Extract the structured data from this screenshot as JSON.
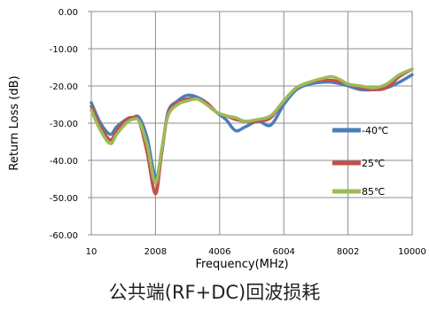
{
  "caption": "公共端(RF+DC)回波损耗",
  "chart_data": {
    "type": "line",
    "title": "",
    "xlabel": "Frequency(MHz)",
    "ylabel": "Return Loss (dB)",
    "xlim": [
      10,
      10000
    ],
    "ylim": [
      -60,
      0
    ],
    "x_ticks": [
      10,
      2008,
      4006,
      6004,
      8002,
      10000
    ],
    "x_tick_labels": [
      "10",
      "2008",
      "4006",
      "6004",
      "8002",
      "10000"
    ],
    "y_ticks": [
      0,
      -10,
      -20,
      -30,
      -40,
      -50,
      -60
    ],
    "y_tick_labels": [
      "0.00",
      "-10.00",
      "-20.00",
      "-30.00",
      "-40.00",
      "-50.00",
      "-60.00"
    ],
    "grid": true,
    "legend_position": "right",
    "series": [
      {
        "name": "-40℃",
        "color": "#4a7ebb",
        "x": [
          10,
          300,
          600,
          800,
          1100,
          1300,
          1500,
          1750,
          2008,
          2200,
          2400,
          2700,
          3000,
          3300,
          3600,
          3900,
          4200,
          4500,
          4800,
          5200,
          5600,
          6004,
          6400,
          6800,
          7200,
          7500,
          7800,
          8002,
          8400,
          8800,
          9200,
          9600,
          10000
        ],
        "y": [
          -24.5,
          -30,
          -33,
          -31,
          -29,
          -28.5,
          -28.5,
          -34,
          -44.5,
          -38,
          -27,
          -24,
          -22.5,
          -23,
          -24.5,
          -27,
          -29,
          -32,
          -31,
          -29.5,
          -30.5,
          -25,
          -21,
          -19.5,
          -19,
          -19,
          -19.5,
          -20,
          -21,
          -21,
          -20.5,
          -19,
          -17
        ]
      },
      {
        "name": "25℃",
        "color": "#c0504d",
        "x": [
          10,
          300,
          600,
          800,
          1100,
          1300,
          1500,
          1750,
          2008,
          2200,
          2400,
          2700,
          3000,
          3300,
          3600,
          3900,
          4200,
          4500,
          4800,
          5200,
          5600,
          6004,
          6400,
          6800,
          7200,
          7500,
          7800,
          8002,
          8400,
          8800,
          9200,
          9600,
          10000
        ],
        "y": [
          -25.5,
          -31,
          -34.5,
          -32,
          -29,
          -28.5,
          -29.5,
          -38,
          -49,
          -38,
          -27.5,
          -24.5,
          -23.5,
          -23.5,
          -24.5,
          -27,
          -28,
          -29,
          -29.5,
          -29.5,
          -28.5,
          -24,
          -20.5,
          -19,
          -18.5,
          -18.5,
          -19,
          -19.5,
          -20.5,
          -21,
          -20.5,
          -17.5,
          -15.5
        ]
      },
      {
        "name": "85℃",
        "color": "#9bbb59",
        "x": [
          10,
          300,
          600,
          800,
          1100,
          1300,
          1500,
          1750,
          2008,
          2200,
          2400,
          2700,
          3000,
          3300,
          3600,
          3900,
          4200,
          4500,
          4800,
          5200,
          5600,
          6004,
          6400,
          6800,
          7200,
          7500,
          7800,
          8002,
          8400,
          8800,
          9200,
          9600,
          10000
        ],
        "y": [
          -26.5,
          -32,
          -35.5,
          -33,
          -30,
          -29,
          -29.5,
          -36,
          -46,
          -37,
          -28,
          -25,
          -24,
          -23.5,
          -25,
          -27,
          -28,
          -28.5,
          -29.5,
          -29,
          -28,
          -24,
          -20.5,
          -19,
          -18,
          -17.5,
          -18.5,
          -19.5,
          -20,
          -20.5,
          -19.5,
          -17,
          -15.5
        ]
      }
    ]
  }
}
